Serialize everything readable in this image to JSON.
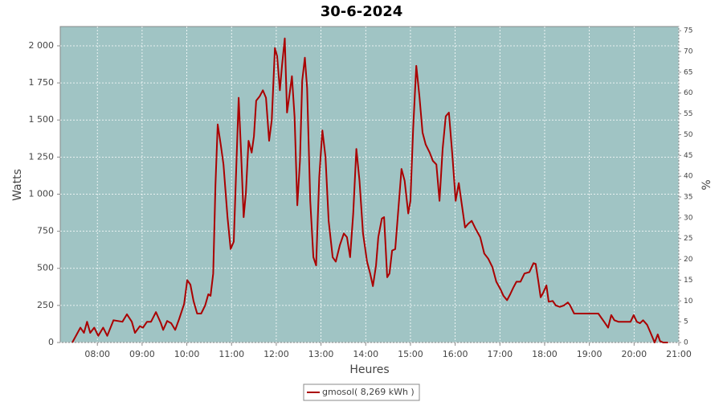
{
  "chart_data": {
    "type": "line",
    "title": "30-6-2024",
    "x_label": "Heures",
    "y_label": "Watts",
    "y2_label": "%",
    "x": [
      7.44,
      7.62,
      7.7,
      7.77,
      7.84,
      7.93,
      8.02,
      8.13,
      8.22,
      8.36,
      8.56,
      8.66,
      8.77,
      8.84,
      8.95,
      9.02,
      9.11,
      9.2,
      9.31,
      9.42,
      9.47,
      9.56,
      9.65,
      9.74,
      9.83,
      9.94,
      10.01,
      10.08,
      10.15,
      10.23,
      10.32,
      10.41,
      10.48,
      10.53,
      10.59,
      10.64,
      10.69,
      10.76,
      10.82,
      10.91,
      10.98,
      11.05,
      11.11,
      11.16,
      11.21,
      11.27,
      11.32,
      11.38,
      11.45,
      11.5,
      11.55,
      11.63,
      11.7,
      11.77,
      11.84,
      11.9,
      11.97,
      12.02,
      12.08,
      12.13,
      12.19,
      12.24,
      12.29,
      12.35,
      12.41,
      12.47,
      12.53,
      12.58,
      12.64,
      12.69,
      12.76,
      12.83,
      12.89,
      12.96,
      13.03,
      13.1,
      13.17,
      13.26,
      13.33,
      13.42,
      13.51,
      13.58,
      13.65,
      13.72,
      13.79,
      13.86,
      13.94,
      14.03,
      14.1,
      14.16,
      14.23,
      14.28,
      14.36,
      14.41,
      14.48,
      14.53,
      14.59,
      14.66,
      14.73,
      14.8,
      14.87,
      14.95,
      15.0,
      15.06,
      15.13,
      15.2,
      15.27,
      15.34,
      15.43,
      15.5,
      15.58,
      15.65,
      15.72,
      15.79,
      15.86,
      15.94,
      16.01,
      16.08,
      16.15,
      16.22,
      16.29,
      16.37,
      16.46,
      16.56,
      16.65,
      16.74,
      16.83,
      16.92,
      17.01,
      17.08,
      17.16,
      17.23,
      17.3,
      17.37,
      17.46,
      17.55,
      17.66,
      17.75,
      17.8,
      17.86,
      17.91,
      17.96,
      18.04,
      18.09,
      18.18,
      18.25,
      18.34,
      18.43,
      18.52,
      18.57,
      18.66,
      18.75,
      18.93,
      19.2,
      19.33,
      19.42,
      19.49,
      19.56,
      19.65,
      19.83,
      19.92,
      19.99,
      20.06,
      20.13,
      20.2,
      20.29,
      20.37,
      20.46,
      20.53,
      20.58,
      20.65,
      20.76
    ],
    "series": [
      {
        "name": "gmosol( 8,269 kWh )",
        "color": "#aa0000",
        "values": [
          0,
          100,
          65,
          140,
          65,
          100,
          45,
          100,
          45,
          150,
          140,
          190,
          140,
          65,
          110,
          100,
          140,
          140,
          205,
          130,
          85,
          145,
          130,
          85,
          160,
          260,
          420,
          390,
          280,
          195,
          195,
          250,
          325,
          315,
          465,
          1060,
          1470,
          1330,
          1200,
          845,
          630,
          680,
          1225,
          1650,
          1305,
          845,
          1010,
          1360,
          1280,
          1390,
          1630,
          1660,
          1700,
          1650,
          1360,
          1500,
          1985,
          1930,
          1700,
          1875,
          2050,
          1550,
          1660,
          1795,
          1520,
          925,
          1225,
          1765,
          1920,
          1715,
          955,
          575,
          520,
          1115,
          1430,
          1250,
          820,
          575,
          545,
          655,
          735,
          710,
          575,
          870,
          1305,
          1090,
          735,
          545,
          465,
          380,
          520,
          710,
          835,
          845,
          440,
          465,
          620,
          630,
          900,
          1170,
          1090,
          870,
          955,
          1440,
          1865,
          1660,
          1415,
          1335,
          1280,
          1225,
          1200,
          955,
          1305,
          1525,
          1550,
          1250,
          955,
          1075,
          925,
          775,
          800,
          820,
          765,
          710,
          600,
          565,
          510,
          410,
          360,
          315,
          285,
          325,
          370,
          410,
          410,
          465,
          475,
          535,
          530,
          410,
          305,
          330,
          385,
          275,
          280,
          250,
          240,
          250,
          270,
          250,
          195,
          195,
          195,
          195,
          140,
          100,
          185,
          150,
          140,
          140,
          140,
          185,
          140,
          130,
          150,
          120,
          65,
          0,
          55,
          10,
          0,
          0
        ]
      }
    ],
    "xlim": [
      7.17,
      21
    ],
    "xticks": [
      {
        "value": 8,
        "label": "08:00"
      },
      {
        "value": 9,
        "label": "09:00"
      },
      {
        "value": 10,
        "label": "10:00"
      },
      {
        "value": 11,
        "label": "11:00"
      },
      {
        "value": 12,
        "label": "12:00"
      },
      {
        "value": 13,
        "label": "13:00"
      },
      {
        "value": 14,
        "label": "14:00"
      },
      {
        "value": 15,
        "label": "15:00"
      },
      {
        "value": 16,
        "label": "16:00"
      },
      {
        "value": 17,
        "label": "17:00"
      },
      {
        "value": 18,
        "label": "18:00"
      },
      {
        "value": 19,
        "label": "19:00"
      },
      {
        "value": 20,
        "label": "20:00"
      },
      {
        "value": 21,
        "label": "21:00"
      }
    ],
    "ylim": [
      0,
      2130
    ],
    "yticks": [
      0,
      250,
      500,
      750,
      {
        "value": 1000,
        "label": "1 000"
      },
      {
        "value": 1250,
        "label": "1 250"
      },
      {
        "value": 1500,
        "label": "1 500"
      },
      {
        "value": 1750,
        "label": "1 750"
      },
      {
        "value": 2000,
        "label": "2 000"
      }
    ],
    "y2lim": [
      0,
      76
    ],
    "y2ticks": [
      0,
      5,
      10,
      15,
      20,
      25,
      30,
      35,
      40,
      45,
      50,
      55,
      60,
      65,
      70,
      75
    ],
    "grid": true,
    "background": "#a0c4c4",
    "legend": "bottom"
  }
}
